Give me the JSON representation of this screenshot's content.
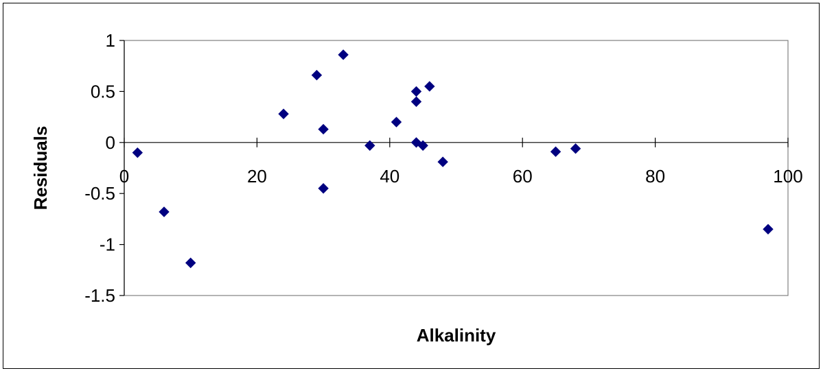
{
  "chart_data": {
    "type": "scatter",
    "title": "",
    "xlabel": "Alkalinity",
    "ylabel": "Residuals",
    "xlim": [
      0,
      100
    ],
    "ylim": [
      -1.5,
      1
    ],
    "x_ticks": [
      "0",
      "20",
      "40",
      "60",
      "80",
      "100"
    ],
    "y_ticks": [
      "1",
      "0.5",
      "0",
      "-0.5",
      "-1",
      "-1.5"
    ],
    "grid": false,
    "legend": "none",
    "marker": "diamond",
    "marker_color": "#000080",
    "points": [
      {
        "x": 2,
        "y": -0.1
      },
      {
        "x": 6,
        "y": -0.68
      },
      {
        "x": 10,
        "y": -1.18
      },
      {
        "x": 24,
        "y": 0.28
      },
      {
        "x": 29,
        "y": 0.66
      },
      {
        "x": 30,
        "y": 0.13
      },
      {
        "x": 30,
        "y": -0.45
      },
      {
        "x": 33,
        "y": 0.86
      },
      {
        "x": 37,
        "y": -0.03
      },
      {
        "x": 41,
        "y": 0.2
      },
      {
        "x": 44,
        "y": 0.5
      },
      {
        "x": 44,
        "y": 0.4
      },
      {
        "x": 44,
        "y": 0.0
      },
      {
        "x": 45,
        "y": -0.03
      },
      {
        "x": 46,
        "y": 0.55
      },
      {
        "x": 48,
        "y": -0.19
      },
      {
        "x": 65,
        "y": -0.09
      },
      {
        "x": 68,
        "y": -0.06
      },
      {
        "x": 97,
        "y": -0.85
      }
    ]
  }
}
